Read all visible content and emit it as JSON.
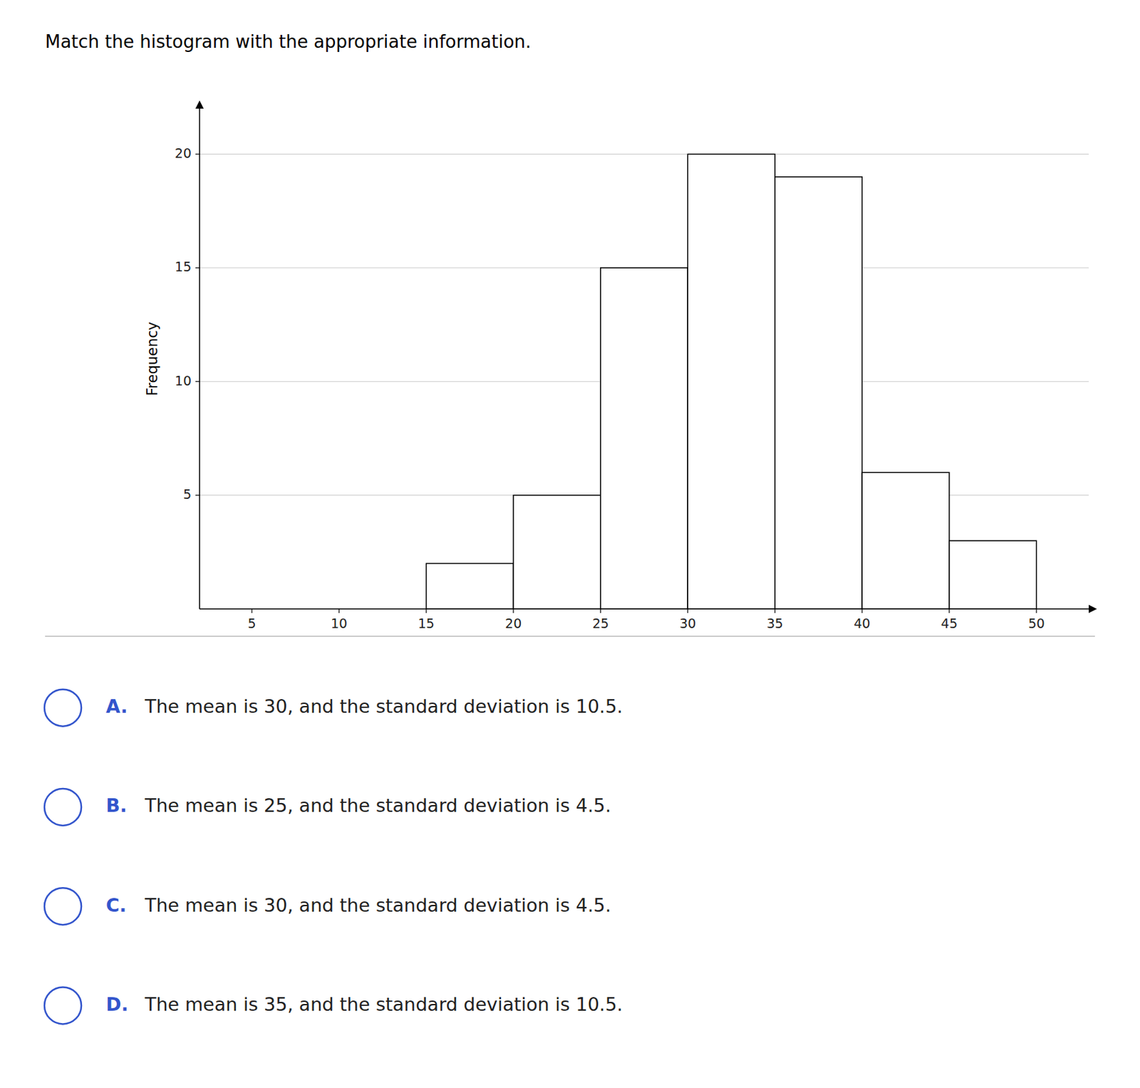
{
  "chart_data": {
    "type": "histogram",
    "title": "Match the histogram with the appropriate information.",
    "y_label": "Frequency",
    "bins": [
      15,
      20,
      25,
      30,
      35,
      40,
      45,
      50
    ],
    "values": [
      2,
      5,
      15,
      20,
      19,
      6,
      3
    ],
    "color": "white",
    "xlim": [
      2,
      53
    ],
    "ylim": [
      0,
      22
    ],
    "xticks": [
      5,
      10,
      15,
      20,
      25,
      30,
      35,
      40,
      45,
      50
    ],
    "yticks": [
      5,
      10,
      15,
      20
    ],
    "grid": true,
    "annotations": [
      {
        "label": "A.",
        "text": "The mean is 30, and the standard deviation is 10.5."
      },
      {
        "label": "B.",
        "text": "The mean is 25, and the standard deviation is 4.5."
      },
      {
        "label": "C.",
        "text": "The mean is 30, and the standard deviation is 4.5."
      },
      {
        "label": "D.",
        "text": "The mean is 35, and the standard deviation is 10.5."
      }
    ]
  }
}
